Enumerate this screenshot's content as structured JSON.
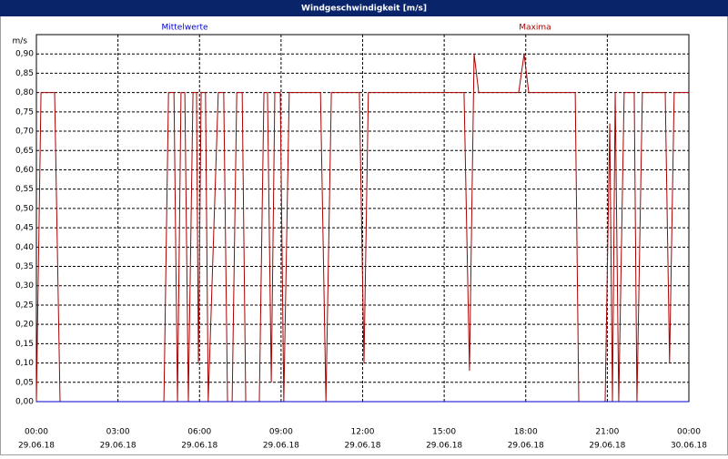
{
  "chart_data": {
    "type": "line",
    "title": "Windgeschwindigkeit [m/s]",
    "y_unit": "m/s",
    "x": [
      0.0,
      0.17,
      0.67,
      0.87,
      4.69,
      4.86,
      5.06,
      5.19,
      5.32,
      5.46,
      5.59,
      5.76,
      5.89,
      5.96,
      6.06,
      6.22,
      6.32,
      6.69,
      6.89,
      7.03,
      7.2,
      7.37,
      7.57,
      7.7,
      8.2,
      8.37,
      8.5,
      8.64,
      8.77,
      8.97,
      9.1,
      9.3,
      10.45,
      10.65,
      10.85,
      11.88,
      12.05,
      12.21,
      15.73,
      15.93,
      16.1,
      16.27,
      17.74,
      17.94,
      18.11,
      19.82,
      19.95,
      20.92,
      21.09,
      21.19,
      21.29,
      21.42,
      21.62,
      21.99,
      22.09,
      22.29,
      23.13,
      23.29,
      23.46,
      24.0
    ],
    "series": [
      {
        "name": "Mittelwerte",
        "color": "#0000cc",
        "values": [
          0,
          0,
          0,
          0,
          0,
          0,
          0,
          0,
          0,
          0,
          0,
          0,
          0,
          0,
          0,
          0,
          0,
          0,
          0,
          0,
          0,
          0,
          0,
          0,
          0,
          0,
          0,
          0,
          0,
          0,
          0,
          0,
          0,
          0,
          0,
          0,
          0,
          0,
          0,
          0,
          0,
          0,
          0,
          0,
          0,
          0,
          0,
          0,
          0,
          0,
          0,
          0,
          0,
          0,
          0,
          0,
          0,
          0,
          0,
          0
        ]
      },
      {
        "name": "Maxima",
        "color": "#aa0000",
        "values": [
          0,
          0.8,
          0.8,
          0,
          0,
          0.8,
          0.8,
          0,
          0.8,
          0.8,
          0,
          0.8,
          0.8,
          0.1,
          0.8,
          0.8,
          0,
          0.8,
          0.8,
          0,
          0,
          0.8,
          0.8,
          0,
          0,
          0.8,
          0.8,
          0.05,
          0.8,
          0.8,
          0,
          0.8,
          0.8,
          0,
          0.8,
          0.8,
          0.1,
          0.8,
          0.8,
          0.08,
          0.9,
          0.8,
          0.8,
          0.9,
          0.8,
          0.8,
          0,
          0,
          0.72,
          0,
          0.8,
          0,
          0.8,
          0.8,
          0,
          0.8,
          0.8,
          0.1,
          0.8,
          0.8
        ]
      }
    ],
    "xlim": [
      0,
      24
    ],
    "xticks": [
      {
        "value": 0,
        "label": "00:00"
      },
      {
        "value": 3,
        "label": "03:00"
      },
      {
        "value": 6,
        "label": "06:00"
      },
      {
        "value": 9,
        "label": "09:00"
      },
      {
        "value": 12,
        "label": "12:00"
      },
      {
        "value": 15,
        "label": "15:00"
      },
      {
        "value": 18,
        "label": "18:00"
      },
      {
        "value": 21,
        "label": "21:00"
      },
      {
        "value": 24,
        "label": "00:00"
      }
    ],
    "xtick_dates": [
      "29.06.18",
      "29.06.18",
      "29.06.18",
      "29.06.18",
      "29.06.18",
      "29.06.18",
      "29.06.18",
      "29.06.18",
      "30.06.18"
    ],
    "ylim": [
      0,
      0.95
    ],
    "yticks": [
      {
        "value": 0,
        "label": "0,00"
      },
      {
        "value": 0.05,
        "label": "0,05"
      },
      {
        "value": 0.1,
        "label": "0,10"
      },
      {
        "value": 0.15,
        "label": "0,15"
      },
      {
        "value": 0.2,
        "label": "0,20"
      },
      {
        "value": 0.25,
        "label": "0,25"
      },
      {
        "value": 0.3,
        "label": "0,30"
      },
      {
        "value": 0.35,
        "label": "0,35"
      },
      {
        "value": 0.4,
        "label": "0,40"
      },
      {
        "value": 0.45,
        "label": "0,45"
      },
      {
        "value": 0.5,
        "label": "0,50"
      },
      {
        "value": 0.55,
        "label": "0,55"
      },
      {
        "value": 0.6,
        "label": "0,60"
      },
      {
        "value": 0.65,
        "label": "0,65"
      },
      {
        "value": 0.7,
        "label": "0,70"
      },
      {
        "value": 0.75,
        "label": "0,75"
      },
      {
        "value": 0.8,
        "label": "0,80"
      },
      {
        "value": 0.85,
        "label": "0,85"
      },
      {
        "value": 0.9,
        "label": "0,90"
      }
    ],
    "grid": true
  }
}
